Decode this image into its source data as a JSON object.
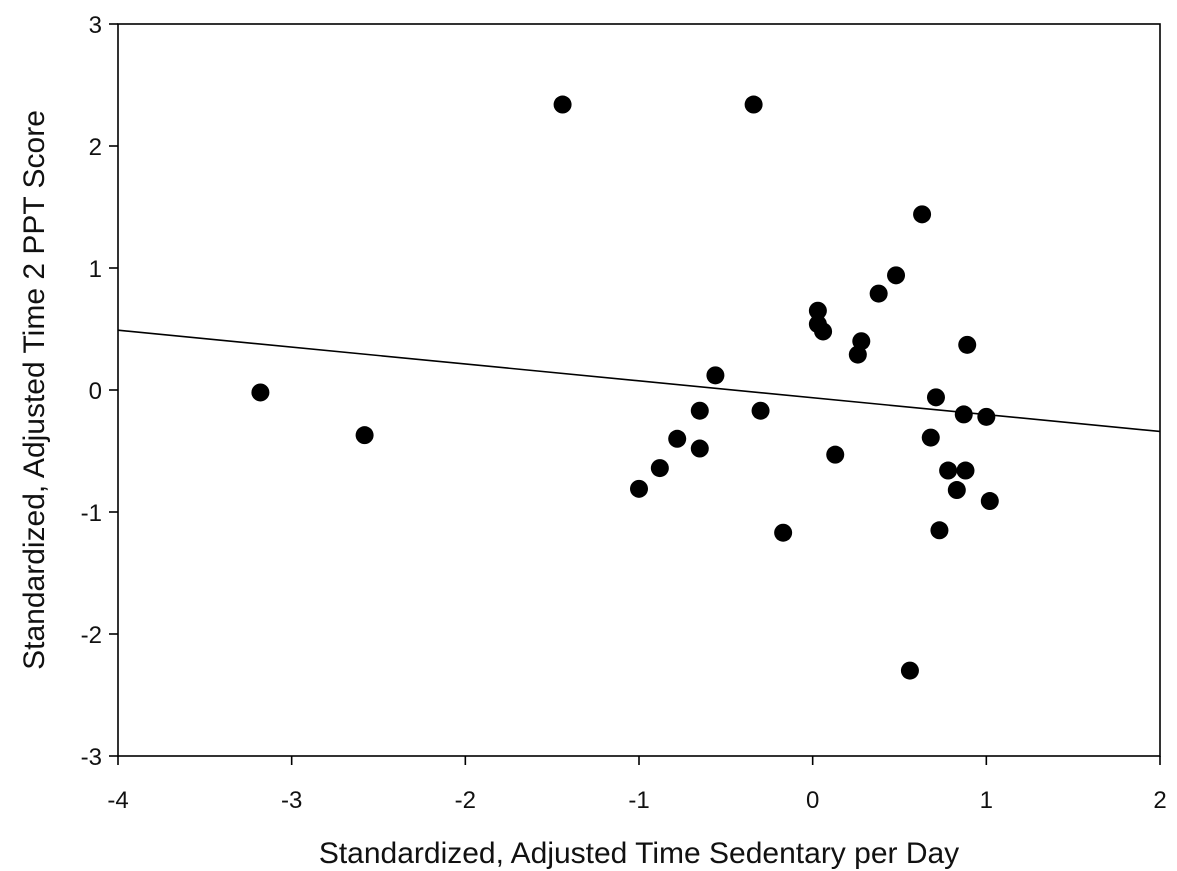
{
  "chart_data": {
    "type": "scatter",
    "xlabel": "Standardized, Adjusted Time Sedentary per Day",
    "ylabel": "Standardized, Adjusted Time 2 PPT Score",
    "xlim": [
      -4,
      2
    ],
    "ylim": [
      -3,
      3
    ],
    "x_ticks": [
      -4,
      -3,
      -2,
      -1,
      0,
      1,
      2
    ],
    "y_ticks": [
      -3,
      -2,
      -1,
      0,
      1,
      2,
      3
    ],
    "x_tick_labels": [
      "-4",
      "-3",
      "-2",
      "-1",
      "0",
      "1",
      "2"
    ],
    "y_tick_labels": [
      "-3",
      "-2",
      "-1",
      "0",
      "1",
      "2",
      "3"
    ],
    "grid": false,
    "series": [
      {
        "points": [
          {
            "x": -3.18,
            "y": -0.02
          },
          {
            "x": -2.58,
            "y": -0.37
          },
          {
            "x": -1.44,
            "y": 2.34
          },
          {
            "x": -0.34,
            "y": 2.34
          },
          {
            "x": -1.0,
            "y": -0.81
          },
          {
            "x": -0.88,
            "y": -0.64
          },
          {
            "x": -0.78,
            "y": -0.4
          },
          {
            "x": -0.65,
            "y": -0.48
          },
          {
            "x": -0.65,
            "y": -0.17
          },
          {
            "x": -0.56,
            "y": 0.12
          },
          {
            "x": -0.3,
            "y": -0.17
          },
          {
            "x": -0.17,
            "y": -1.17
          },
          {
            "x": 0.03,
            "y": 0.65
          },
          {
            "x": 0.03,
            "y": 0.54
          },
          {
            "x": 0.06,
            "y": 0.48
          },
          {
            "x": 0.13,
            "y": -0.53
          },
          {
            "x": 0.26,
            "y": 0.29
          },
          {
            "x": 0.28,
            "y": 0.4
          },
          {
            "x": 0.38,
            "y": 0.79
          },
          {
            "x": 0.48,
            "y": 0.94
          },
          {
            "x": 0.56,
            "y": -2.3
          },
          {
            "x": 0.63,
            "y": 1.44
          },
          {
            "x": 0.68,
            "y": -0.39
          },
          {
            "x": 0.71,
            "y": -0.06
          },
          {
            "x": 0.73,
            "y": -1.15
          },
          {
            "x": 0.78,
            "y": -0.66
          },
          {
            "x": 0.83,
            "y": -0.82
          },
          {
            "x": 0.87,
            "y": -0.2
          },
          {
            "x": 0.88,
            "y": -0.66
          },
          {
            "x": 0.89,
            "y": 0.37
          },
          {
            "x": 1.0,
            "y": -0.22
          },
          {
            "x": 1.02,
            "y": -0.91
          }
        ]
      }
    ],
    "regression_line": {
      "x": [
        -4,
        2
      ],
      "y": [
        0.49,
        -0.34
      ]
    }
  }
}
